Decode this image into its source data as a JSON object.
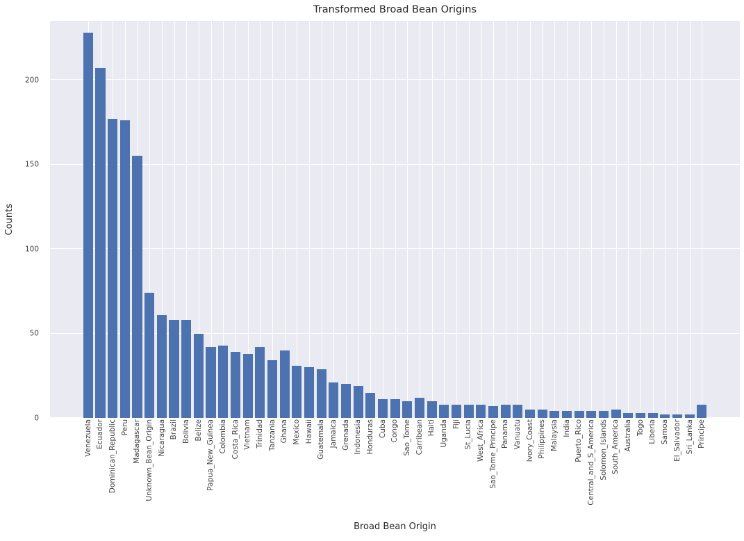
{
  "chart_data": {
    "type": "bar",
    "title": "Transformed Broad Bean Origins",
    "xlabel": "Broad Bean Origin",
    "ylabel": "Counts",
    "ylim": [
      0,
      235
    ],
    "yticks": [
      0,
      50,
      100,
      150,
      200
    ],
    "grid": true,
    "legend": false,
    "bar_color": "#4c72b0",
    "plot_background": "#eaeaf2",
    "grid_color": "#ffffff",
    "categories": [
      "Venezuela",
      "Ecuador",
      "Dominican_Republic",
      "Peru",
      "Madagascar",
      "Unknown_Bean_Origin",
      "Nicaragua",
      "Brazil",
      "Bolivia",
      "Belize",
      "Papua_New_Guinea",
      "Colombia",
      "Costa_Rica",
      "Vietnam",
      "Trinidad",
      "Tanzania",
      "Ghana",
      "Mexico",
      "Hawaii",
      "Guatemala",
      "Jamaica",
      "Grenada",
      "Indonesia",
      "Honduras",
      "Cuba",
      "Congo",
      "Sao_Tome",
      "Carribean",
      "Haiti",
      "Uganda",
      "Fiji",
      "St_Lucia",
      "West_Africa",
      "Sao_Tome_Principe",
      "Panama",
      "Vanuatu",
      "Ivory_Coast",
      "Philippines",
      "Malaysia",
      "India",
      "Puerto_Rico",
      "Central_and_S_America",
      "Solomon_Islands",
      "South_America",
      "Australia",
      "Togo",
      "Liberia",
      "Samoa",
      "El_Salvador",
      "Sri_Lanka",
      "Principe"
    ],
    "values": [
      228,
      207,
      177,
      176,
      155,
      74,
      61,
      58,
      58,
      50,
      42,
      43,
      39,
      38,
      42,
      34,
      40,
      31,
      30,
      29,
      21,
      20,
      19,
      15,
      11,
      11,
      10,
      12,
      10,
      8,
      8,
      8,
      8,
      7,
      8,
      8,
      5,
      5,
      4,
      4,
      4,
      4,
      4,
      5,
      3,
      3,
      3,
      2,
      2,
      2,
      8
    ]
  }
}
